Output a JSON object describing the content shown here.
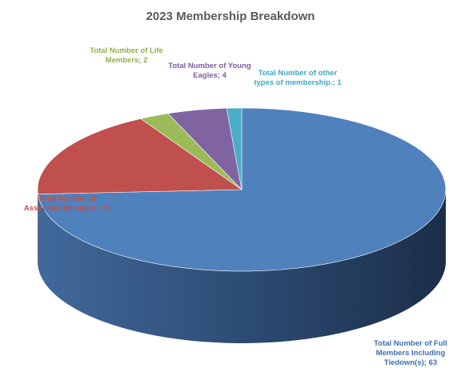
{
  "chart_data": {
    "type": "pie3d",
    "title": "2023 Membership Breakdown",
    "values": [
      63,
      15,
      2,
      4,
      1
    ],
    "value_labels": [
      "Total Number of Full Members Including Tiedown(s); 63",
      "Total Number of Associate Members ; 15",
      "Total Number of Life Members; 2",
      "Total Number of Young Eagles; 4",
      "Total Number of other types of membership.; 1"
    ],
    "colors": [
      "#4f81bd",
      "#c0504d",
      "#9bbb59",
      "#8064a2",
      "#4bacc6"
    ]
  }
}
